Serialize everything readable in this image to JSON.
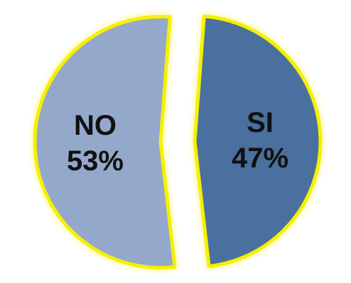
{
  "chart_data": {
    "type": "pie",
    "title": "",
    "slices": [
      {
        "label": "SI",
        "value": 47,
        "percent_label": "47%",
        "color": "#4a6f9e",
        "exploded": true
      },
      {
        "label": "NO",
        "value": 53,
        "percent_label": "53%",
        "color": "#94a8cb",
        "exploded": true
      }
    ],
    "legend": "none",
    "slice_outline_color": "#f5f000",
    "slice_glow_color": "#fff8a0"
  }
}
